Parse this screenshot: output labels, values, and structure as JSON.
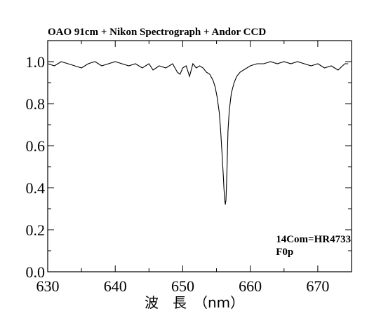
{
  "chart_data": {
    "type": "line",
    "title": "OAO 91cm + Nikon Spectrograph + Andor CCD",
    "xlabel": "波　長　（nm）",
    "ylabel": "",
    "xlim": [
      630,
      675
    ],
    "ylim": [
      0.0,
      1.1
    ],
    "x_ticks": [
      630,
      640,
      650,
      660,
      670
    ],
    "x_tick_labels": [
      "630",
      "640",
      "650",
      "660",
      "670"
    ],
    "y_ticks": [
      0.0,
      0.2,
      0.4,
      0.6,
      0.8,
      1.0
    ],
    "y_tick_labels": [
      "0.0",
      "0.2",
      "0.4",
      "0.6",
      "0.8",
      "1.0"
    ],
    "grid": false,
    "annotations": [
      {
        "text": "14Com=HR4733",
        "x": 663.8,
        "y": 0.14
      },
      {
        "text": "F0p",
        "x": 663.8,
        "y": 0.08
      }
    ],
    "series": [
      {
        "color": "#000000",
        "x": [
          630.0,
          631.0,
          632.0,
          633.0,
          634.0,
          635.0,
          636.0,
          637.0,
          638.0,
          639.0,
          640.0,
          641.0,
          642.0,
          643.0,
          644.0,
          645.0,
          645.6,
          646.5,
          647.5,
          648.5,
          649.2,
          649.6,
          650.0,
          650.5,
          651.0,
          651.5,
          652.0,
          652.5,
          653.0,
          653.5,
          654.0,
          654.5,
          654.8,
          655.1,
          655.4,
          655.6,
          655.8,
          656.0,
          656.1,
          656.2,
          656.3,
          656.4,
          656.5,
          656.6,
          656.7,
          656.9,
          657.2,
          657.6,
          658.0,
          658.5,
          659.0,
          660.0,
          661.0,
          662.0,
          663.0,
          664.0,
          665.0,
          666.0,
          667.0,
          668.0,
          669.0,
          670.0,
          671.0,
          672.0,
          673.0,
          674.0,
          674.5
        ],
        "values": [
          0.99,
          0.98,
          1.0,
          0.99,
          0.98,
          0.97,
          0.99,
          1.0,
          0.98,
          0.99,
          1.0,
          0.99,
          0.98,
          0.99,
          0.97,
          0.99,
          0.96,
          0.98,
          0.97,
          0.99,
          0.95,
          0.94,
          0.97,
          0.98,
          0.93,
          0.99,
          0.97,
          0.98,
          0.97,
          0.95,
          0.94,
          0.91,
          0.88,
          0.83,
          0.76,
          0.68,
          0.57,
          0.46,
          0.4,
          0.35,
          0.32,
          0.34,
          0.43,
          0.55,
          0.67,
          0.77,
          0.85,
          0.9,
          0.93,
          0.95,
          0.96,
          0.98,
          0.99,
          0.99,
          1.0,
          0.99,
          1.0,
          0.99,
          1.0,
          0.99,
          0.98,
          0.99,
          0.97,
          0.98,
          0.96,
          0.99,
          0.99
        ]
      }
    ]
  }
}
